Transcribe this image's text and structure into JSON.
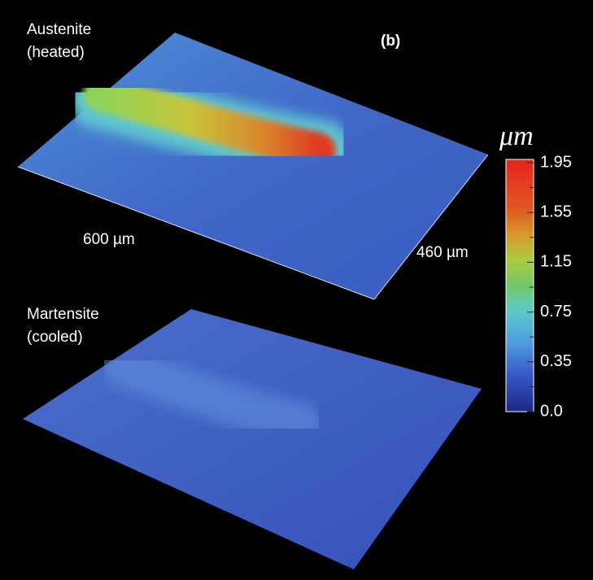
{
  "panel_label": "(b)",
  "top_surface": {
    "label_line1": "Austenite",
    "label_line2": "(heated)",
    "x_extent": "600 µm",
    "y_extent": "460 µm"
  },
  "bottom_surface": {
    "label_line1": "Martensite",
    "label_line2": "(cooled)"
  },
  "colorbar": {
    "unit": "μm",
    "ticks": [
      "1.95",
      "1.55",
      "1.15",
      "0.75",
      "0.35",
      "0.0"
    ]
  }
}
